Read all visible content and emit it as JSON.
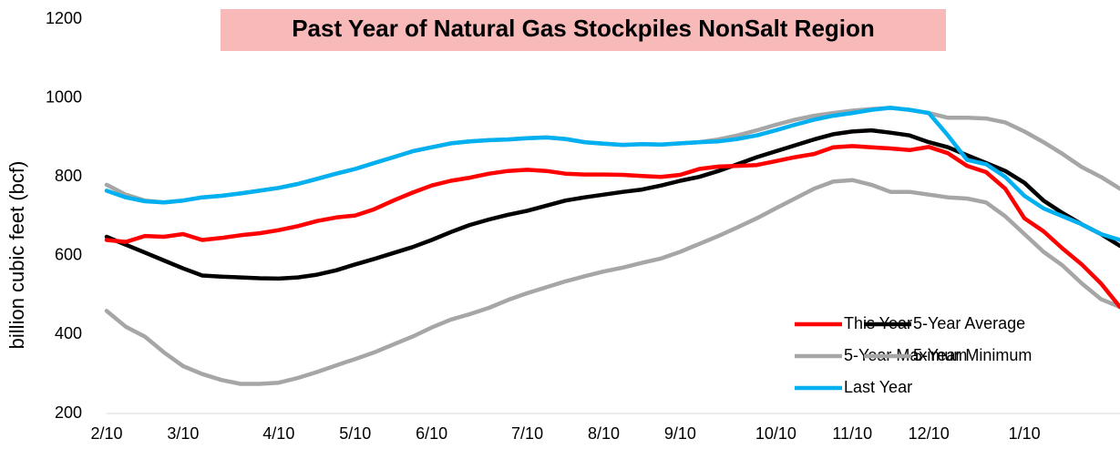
{
  "chart_data": {
    "type": "line",
    "title": "Past Year of Natural Gas Stockpiles NonSalt Region",
    "y_label": "billion cubic feet (bcf)",
    "categories": [
      "2/10",
      null,
      null,
      null,
      "3/10",
      null,
      null,
      null,
      null,
      "4/10",
      null,
      null,
      null,
      "5/10",
      null,
      null,
      null,
      "6/10",
      null,
      null,
      null,
      null,
      "7/10",
      null,
      null,
      null,
      "8/10",
      null,
      null,
      null,
      "9/10",
      null,
      null,
      null,
      null,
      "10/10",
      null,
      null,
      null,
      "11/10",
      null,
      null,
      null,
      "12/10",
      null,
      null,
      null,
      null,
      "1/10",
      null,
      null,
      null,
      null,
      null
    ],
    "ylim": [
      200,
      1200
    ],
    "yticks": [
      200,
      400,
      600,
      800,
      1000,
      1200
    ],
    "grid": false,
    "legend": "lower right",
    "series": [
      {
        "name": "This Year",
        "color": "#ff0000",
        "values": [
          640,
          635,
          650,
          648,
          655,
          640,
          645,
          652,
          657,
          665,
          675,
          688,
          697,
          702,
          718,
          740,
          760,
          778,
          790,
          798,
          808,
          815,
          818,
          815,
          808,
          806,
          806,
          805,
          802,
          800,
          805,
          820,
          826,
          828,
          830,
          840,
          850,
          858,
          875,
          878,
          875,
          872,
          868,
          876,
          860,
          828,
          812,
          770,
          695,
          662,
          618,
          578,
          530,
          470
        ]
      },
      {
        "name": "5-Year Average",
        "color": "#000000",
        "values": [
          648,
          628,
          608,
          588,
          568,
          550,
          547,
          545,
          543,
          542,
          545,
          552,
          563,
          578,
          592,
          607,
          622,
          640,
          660,
          678,
          692,
          704,
          714,
          727,
          740,
          748,
          755,
          762,
          768,
          778,
          790,
          800,
          815,
          832,
          850,
          865,
          880,
          895,
          908,
          915,
          918,
          912,
          905,
          888,
          875,
          855,
          835,
          815,
          785,
          740,
          708,
          680,
          655,
          625
        ]
      },
      {
        "name": "5-Year Maximum",
        "color": "#a6a6a6",
        "values": [
          780,
          755,
          740,
          735,
          740,
          748,
          752,
          758,
          765,
          772,
          782,
          795,
          808,
          820,
          835,
          850,
          865,
          875,
          885,
          890,
          893,
          895,
          898,
          900,
          896,
          888,
          884,
          881,
          883,
          882,
          885,
          888,
          895,
          905,
          918,
          932,
          945,
          955,
          962,
          968,
          972,
          975,
          970,
          962,
          950,
          950,
          948,
          938,
          915,
          888,
          858,
          825,
          800,
          770
        ]
      },
      {
        "name": "5-Year Minimum",
        "color": "#a6a6a6",
        "values": [
          460,
          420,
          395,
          355,
          320,
          300,
          285,
          275,
          275,
          278,
          290,
          305,
          322,
          338,
          355,
          375,
          395,
          418,
          438,
          452,
          468,
          488,
          505,
          520,
          535,
          548,
          560,
          570,
          582,
          593,
          610,
          630,
          650,
          672,
          695,
          720,
          745,
          770,
          788,
          792,
          780,
          762,
          762,
          755,
          748,
          745,
          735,
          700,
          655,
          610,
          575,
          530,
          490,
          470
        ]
      },
      {
        "name": "Last Year",
        "color": "#00b0f0",
        "values": [
          765,
          748,
          738,
          735,
          740,
          748,
          752,
          758,
          765,
          772,
          782,
          795,
          808,
          820,
          835,
          850,
          865,
          875,
          885,
          890,
          893,
          895,
          898,
          900,
          896,
          888,
          884,
          881,
          883,
          882,
          885,
          888,
          890,
          896,
          905,
          918,
          932,
          945,
          955,
          962,
          970,
          975,
          970,
          962,
          905,
          843,
          832,
          800,
          752,
          720,
          700,
          680,
          655,
          640
        ]
      }
    ]
  }
}
